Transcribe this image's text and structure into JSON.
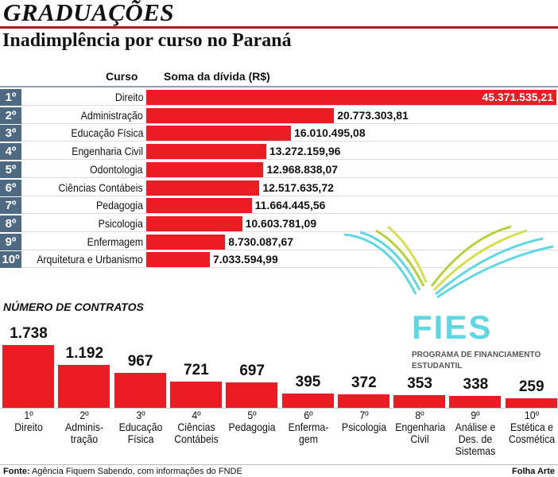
{
  "header": {
    "kicker": "GRADUAÇÕES",
    "title": "Inadimplência por curso no Paraná",
    "col_curso": "Curso",
    "col_divida": "Soma da dívida (R$)",
    "section2": "NÚMERO DE CONTRATOS"
  },
  "logo": {
    "name": "FIES",
    "subtitle1": "PROGRAMA DE FINANCIAMENTO",
    "subtitle2": "ESTUDANTIL"
  },
  "footer": {
    "source_label": "Fonte:",
    "source": " Agência Fiquem Sabendo, com informações do FNDE",
    "credit": "Folha Arte"
  },
  "colors": {
    "bar": "#ec1c24",
    "rank": "#4e6a82",
    "fies": "#5fd8e2"
  },
  "chart_data": [
    {
      "type": "bar",
      "orientation": "horizontal",
      "title": "Inadimplência por curso no Paraná",
      "xlabel": "Soma da dívida (R$)",
      "ylabel": "Curso",
      "ranks": [
        "1º",
        "2º",
        "3º",
        "4º",
        "5º",
        "6º",
        "7º",
        "8º",
        "9º",
        "10º"
      ],
      "categories": [
        "Direito",
        "Administração",
        "Educação Física",
        "Engenharia Civil",
        "Odontologia",
        "Ciências Contábeis",
        "Pedagogia",
        "Psicologia",
        "Enfermagem",
        "Arquitetura e Urbanismo"
      ],
      "values": [
        45371535.21,
        20773303.81,
        16010495.08,
        13272159.96,
        12968838.07,
        12517635.72,
        11664445.56,
        10603781.09,
        8730087.67,
        7033594.99
      ],
      "labels": [
        "45.371.535,21",
        "20.773.303,81",
        "16.010.495,08",
        "13.272.159,96",
        "12.968.838,07",
        "12.517.635,72",
        "11.664.445,56",
        "10.603.781,09",
        "8.730.087,67",
        "7.033.594,99"
      ]
    },
    {
      "type": "bar",
      "orientation": "vertical",
      "title": "NÚMERO DE CONTRATOS",
      "ranks": [
        "1º",
        "2º",
        "3º",
        "4º",
        "5º",
        "6º",
        "7º",
        "8º",
        "9º",
        "10º"
      ],
      "categories": [
        "Direito",
        "Adminis-tração",
        "Educação Física",
        "Ciências Contábeis",
        "Pedagogia",
        "Enferma-gem",
        "Psicologia",
        "Engenharia Civil",
        "Análise e Des. de Sistemas",
        "Estética e Cosmética"
      ],
      "values": [
        1738,
        1192,
        967,
        721,
        697,
        395,
        372,
        353,
        338,
        259
      ],
      "labels": [
        "1.738",
        "1.192",
        "967",
        "721",
        "697",
        "395",
        "372",
        "353",
        "338",
        "259"
      ]
    }
  ]
}
